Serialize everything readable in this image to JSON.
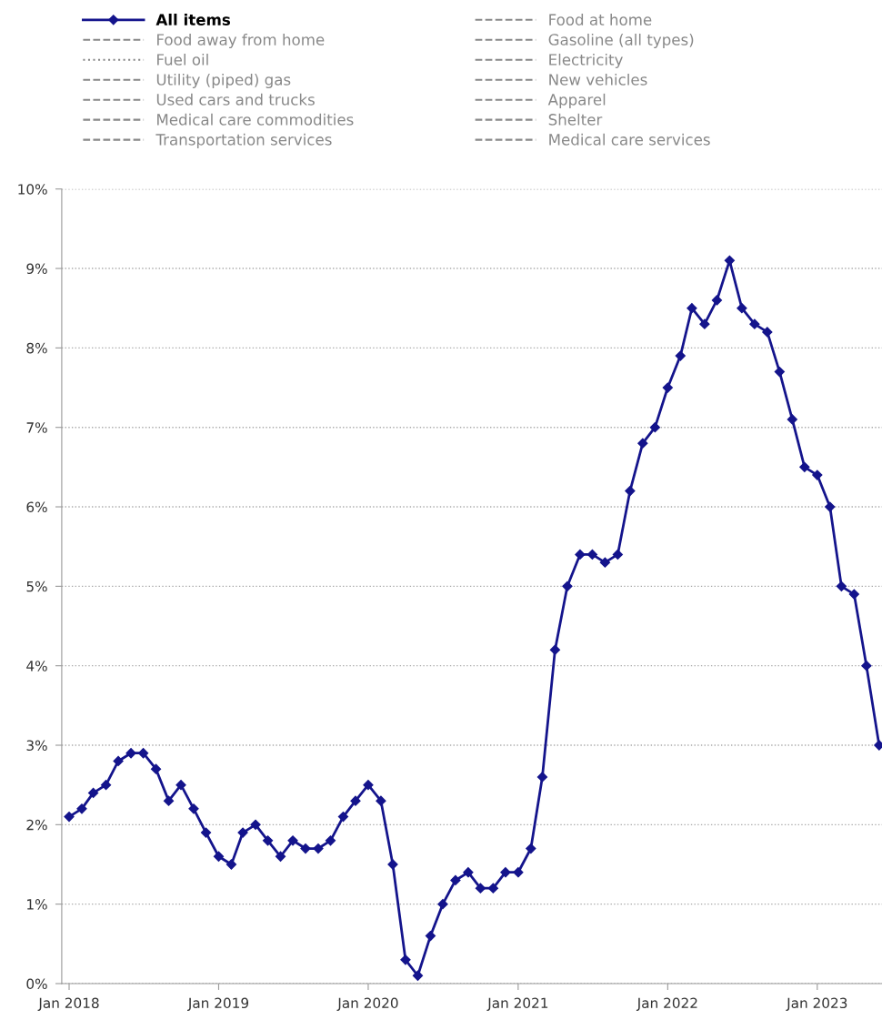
{
  "chart_data": {
    "type": "line",
    "x": [
      "2018-01",
      "2018-02",
      "2018-03",
      "2018-04",
      "2018-05",
      "2018-06",
      "2018-07",
      "2018-08",
      "2018-09",
      "2018-10",
      "2018-11",
      "2018-12",
      "2019-01",
      "2019-02",
      "2019-03",
      "2019-04",
      "2019-05",
      "2019-06",
      "2019-07",
      "2019-08",
      "2019-09",
      "2019-10",
      "2019-11",
      "2019-12",
      "2020-01",
      "2020-02",
      "2020-03",
      "2020-04",
      "2020-05",
      "2020-06",
      "2020-07",
      "2020-08",
      "2020-09",
      "2020-10",
      "2020-11",
      "2020-12",
      "2021-01",
      "2021-02",
      "2021-03",
      "2021-04",
      "2021-05",
      "2021-06",
      "2021-07",
      "2021-08",
      "2021-09",
      "2021-10",
      "2021-11",
      "2021-12",
      "2022-01",
      "2022-02",
      "2022-03",
      "2022-04",
      "2022-05",
      "2022-06",
      "2022-07",
      "2022-08",
      "2022-09",
      "2022-10",
      "2022-11",
      "2022-12",
      "2023-01",
      "2023-02",
      "2023-03",
      "2023-04",
      "2023-05",
      "2023-06"
    ],
    "series": [
      {
        "name": "All items",
        "color": "#14148c",
        "line_style": "solid",
        "values": [
          2.1,
          2.2,
          2.4,
          2.5,
          2.8,
          2.9,
          2.9,
          2.7,
          2.3,
          2.5,
          2.2,
          1.9,
          1.6,
          1.5,
          1.9,
          2.0,
          1.8,
          1.6,
          1.8,
          1.7,
          1.7,
          1.8,
          2.1,
          2.3,
          2.5,
          2.3,
          1.5,
          0.3,
          0.1,
          0.6,
          1.0,
          1.3,
          1.4,
          1.2,
          1.2,
          1.4,
          1.4,
          1.7,
          2.6,
          4.2,
          5.0,
          5.4,
          5.4,
          5.3,
          5.4,
          6.2,
          6.8,
          7.0,
          7.5,
          7.9,
          8.5,
          8.3,
          8.6,
          9.1,
          8.5,
          8.3,
          8.2,
          7.7,
          7.1,
          6.5,
          6.4,
          6.0,
          5.0,
          4.9,
          4.0,
          3.0
        ]
      },
      {
        "name": "Food at home",
        "color": "#888888",
        "line_style": "dashed",
        "values": [
          null,
          null,
          null,
          null,
          null,
          null,
          null,
          null,
          null,
          null,
          null,
          null,
          null,
          null,
          null,
          null,
          null,
          null,
          null,
          null,
          null,
          null,
          null,
          null,
          null,
          null,
          null,
          null,
          null,
          null,
          null,
          null,
          null,
          null,
          null,
          null,
          null,
          null,
          null,
          null,
          null,
          null,
          null,
          null,
          null,
          null,
          null,
          null,
          null,
          null,
          null,
          null,
          null,
          null,
          null,
          null,
          null,
          null,
          null,
          null,
          null,
          null,
          null,
          null,
          null,
          null
        ]
      },
      {
        "name": "Food away from home",
        "color": "#888888",
        "line_style": "dashed",
        "values": [
          null,
          null,
          null,
          null,
          null,
          null,
          null,
          null,
          null,
          null,
          null,
          null,
          null,
          null,
          null,
          null,
          null,
          null,
          null,
          null,
          null,
          null,
          null,
          null,
          null,
          null,
          null,
          null,
          null,
          null,
          null,
          null,
          null,
          null,
          null,
          null,
          null,
          null,
          null,
          null,
          null,
          null,
          null,
          null,
          null,
          null,
          null,
          null,
          null,
          null,
          null,
          null,
          null,
          null,
          null,
          null,
          null,
          null,
          null,
          null,
          null,
          null,
          null,
          null,
          null,
          null
        ]
      },
      {
        "name": "Gasoline (all types)",
        "color": "#888888",
        "line_style": "dashed",
        "values": [
          null,
          null,
          null,
          null,
          null,
          null,
          null,
          null,
          null,
          null,
          null,
          null,
          null,
          null,
          null,
          null,
          null,
          null,
          null,
          null,
          null,
          null,
          null,
          null,
          null,
          null,
          null,
          null,
          null,
          null,
          null,
          null,
          null,
          null,
          null,
          null,
          null,
          null,
          null,
          null,
          null,
          null,
          null,
          null,
          null,
          null,
          null,
          null,
          null,
          null,
          null,
          null,
          null,
          null,
          null,
          null,
          null,
          null,
          null,
          null,
          null,
          null,
          null,
          null,
          null,
          null
        ]
      },
      {
        "name": "Fuel oil",
        "color": "#888888",
        "line_style": "dotted",
        "values": [
          null,
          null,
          null,
          null,
          null,
          null,
          null,
          null,
          null,
          null,
          null,
          null,
          null,
          null,
          null,
          null,
          null,
          null,
          null,
          null,
          null,
          null,
          null,
          null,
          null,
          null,
          null,
          null,
          null,
          null,
          null,
          null,
          null,
          null,
          null,
          null,
          null,
          null,
          null,
          null,
          null,
          null,
          null,
          null,
          null,
          null,
          null,
          null,
          null,
          null,
          null,
          null,
          null,
          null,
          null,
          null,
          null,
          null,
          null,
          null,
          null,
          null,
          null,
          null,
          null,
          null
        ]
      },
      {
        "name": "Electricity",
        "color": "#888888",
        "line_style": "dashed",
        "values": [
          null,
          null,
          null,
          null,
          null,
          null,
          null,
          null,
          null,
          null,
          null,
          null,
          null,
          null,
          null,
          null,
          null,
          null,
          null,
          null,
          null,
          null,
          null,
          null,
          null,
          null,
          null,
          null,
          null,
          null,
          null,
          null,
          null,
          null,
          null,
          null,
          null,
          null,
          null,
          null,
          null,
          null,
          null,
          null,
          null,
          null,
          null,
          null,
          null,
          null,
          null,
          null,
          null,
          null,
          null,
          null,
          null,
          null,
          null,
          null,
          null,
          null,
          null,
          null,
          null,
          null
        ]
      },
      {
        "name": "Utility (piped) gas",
        "color": "#888888",
        "line_style": "dashed",
        "values": [
          null,
          null,
          null,
          null,
          null,
          null,
          null,
          null,
          null,
          null,
          null,
          null,
          null,
          null,
          null,
          null,
          null,
          null,
          null,
          null,
          null,
          null,
          null,
          null,
          null,
          null,
          null,
          null,
          null,
          null,
          null,
          null,
          null,
          null,
          null,
          null,
          null,
          null,
          null,
          null,
          null,
          null,
          null,
          null,
          null,
          null,
          null,
          null,
          null,
          null,
          null,
          null,
          null,
          null,
          null,
          null,
          null,
          null,
          null,
          null,
          null,
          null,
          null,
          null,
          null,
          null
        ]
      },
      {
        "name": "New vehicles",
        "color": "#888888",
        "line_style": "dashed",
        "values": [
          null,
          null,
          null,
          null,
          null,
          null,
          null,
          null,
          null,
          null,
          null,
          null,
          null,
          null,
          null,
          null,
          null,
          null,
          null,
          null,
          null,
          null,
          null,
          null,
          null,
          null,
          null,
          null,
          null,
          null,
          null,
          null,
          null,
          null,
          null,
          null,
          null,
          null,
          null,
          null,
          null,
          null,
          null,
          null,
          null,
          null,
          null,
          null,
          null,
          null,
          null,
          null,
          null,
          null,
          null,
          null,
          null,
          null,
          null,
          null,
          null,
          null,
          null,
          null,
          null,
          null
        ]
      },
      {
        "name": "Used cars and trucks",
        "color": "#888888",
        "line_style": "dashed",
        "values": [
          null,
          null,
          null,
          null,
          null,
          null,
          null,
          null,
          null,
          null,
          null,
          null,
          null,
          null,
          null,
          null,
          null,
          null,
          null,
          null,
          null,
          null,
          null,
          null,
          null,
          null,
          null,
          null,
          null,
          null,
          null,
          null,
          null,
          null,
          null,
          null,
          null,
          null,
          null,
          null,
          null,
          null,
          null,
          null,
          null,
          null,
          null,
          null,
          null,
          null,
          null,
          null,
          null,
          null,
          null,
          null,
          null,
          null,
          null,
          null,
          null,
          null,
          null,
          null,
          null,
          null
        ]
      },
      {
        "name": "Apparel",
        "color": "#888888",
        "line_style": "dashed",
        "values": [
          null,
          null,
          null,
          null,
          null,
          null,
          null,
          null,
          null,
          null,
          null,
          null,
          null,
          null,
          null,
          null,
          null,
          null,
          null,
          null,
          null,
          null,
          null,
          null,
          null,
          null,
          null,
          null,
          null,
          null,
          null,
          null,
          null,
          null,
          null,
          null,
          null,
          null,
          null,
          null,
          null,
          null,
          null,
          null,
          null,
          null,
          null,
          null,
          null,
          null,
          null,
          null,
          null,
          null,
          null,
          null,
          null,
          null,
          null,
          null,
          null,
          null,
          null,
          null,
          null,
          null
        ]
      },
      {
        "name": "Medical care commodities",
        "color": "#888888",
        "line_style": "dashed",
        "values": [
          null,
          null,
          null,
          null,
          null,
          null,
          null,
          null,
          null,
          null,
          null,
          null,
          null,
          null,
          null,
          null,
          null,
          null,
          null,
          null,
          null,
          null,
          null,
          null,
          null,
          null,
          null,
          null,
          null,
          null,
          null,
          null,
          null,
          null,
          null,
          null,
          null,
          null,
          null,
          null,
          null,
          null,
          null,
          null,
          null,
          null,
          null,
          null,
          null,
          null,
          null,
          null,
          null,
          null,
          null,
          null,
          null,
          null,
          null,
          null,
          null,
          null,
          null,
          null,
          null,
          null
        ]
      },
      {
        "name": "Shelter",
        "color": "#888888",
        "line_style": "dashed",
        "values": [
          null,
          null,
          null,
          null,
          null,
          null,
          null,
          null,
          null,
          null,
          null,
          null,
          null,
          null,
          null,
          null,
          null,
          null,
          null,
          null,
          null,
          null,
          null,
          null,
          null,
          null,
          null,
          null,
          null,
          null,
          null,
          null,
          null,
          null,
          null,
          null,
          null,
          null,
          null,
          null,
          null,
          null,
          null,
          null,
          null,
          null,
          null,
          null,
          null,
          null,
          null,
          null,
          null,
          null,
          null,
          null,
          null,
          null,
          null,
          null,
          null,
          null,
          null,
          null,
          null,
          null
        ]
      },
      {
        "name": "Transportation services",
        "color": "#888888",
        "line_style": "dashed",
        "values": [
          null,
          null,
          null,
          null,
          null,
          null,
          null,
          null,
          null,
          null,
          null,
          null,
          null,
          null,
          null,
          null,
          null,
          null,
          null,
          null,
          null,
          null,
          null,
          null,
          null,
          null,
          null,
          null,
          null,
          null,
          null,
          null,
          null,
          null,
          null,
          null,
          null,
          null,
          null,
          null,
          null,
          null,
          null,
          null,
          null,
          null,
          null,
          null,
          null,
          null,
          null,
          null,
          null,
          null,
          null,
          null,
          null,
          null,
          null,
          null,
          null,
          null,
          null,
          null,
          null,
          null
        ]
      },
      {
        "name": "Medical care services",
        "color": "#888888",
        "line_style": "dashed",
        "values": [
          null,
          null,
          null,
          null,
          null,
          null,
          null,
          null,
          null,
          null,
          null,
          null,
          null,
          null,
          null,
          null,
          null,
          null,
          null,
          null,
          null,
          null,
          null,
          null,
          null,
          null,
          null,
          null,
          null,
          null,
          null,
          null,
          null,
          null,
          null,
          null,
          null,
          null,
          null,
          null,
          null,
          null,
          null,
          null,
          null,
          null,
          null,
          null,
          null,
          null,
          null,
          null,
          null,
          null,
          null,
          null,
          null,
          null,
          null,
          null,
          null,
          null,
          null,
          null,
          null,
          null
        ]
      }
    ],
    "xlim": [
      "2017-12-14",
      "2023-06-08"
    ],
    "xticks": [
      {
        "value": "2018-01",
        "label": "Jan 2018"
      },
      {
        "value": "2019-01",
        "label": "Jan 2019"
      },
      {
        "value": "2020-01",
        "label": "Jan 2020"
      },
      {
        "value": "2021-01",
        "label": "Jan 2021"
      },
      {
        "value": "2022-01",
        "label": "Jan 2022"
      },
      {
        "value": "2023-01",
        "label": "Jan 2023"
      }
    ],
    "ylim": [
      0,
      10
    ],
    "yticks": [
      {
        "value": 0,
        "label": "0%"
      },
      {
        "value": 1,
        "label": "1%"
      },
      {
        "value": 2,
        "label": "2%"
      },
      {
        "value": 3,
        "label": "3%"
      },
      {
        "value": 4,
        "label": "4%"
      },
      {
        "value": 5,
        "label": "5%"
      },
      {
        "value": 6,
        "label": "6%"
      },
      {
        "value": 7,
        "label": "7%"
      },
      {
        "value": 8,
        "label": "8%"
      },
      {
        "value": 9,
        "label": "9%"
      },
      {
        "value": 10,
        "label": "10%"
      }
    ],
    "grid": "y",
    "legend": "top",
    "marker": "diamond"
  }
}
